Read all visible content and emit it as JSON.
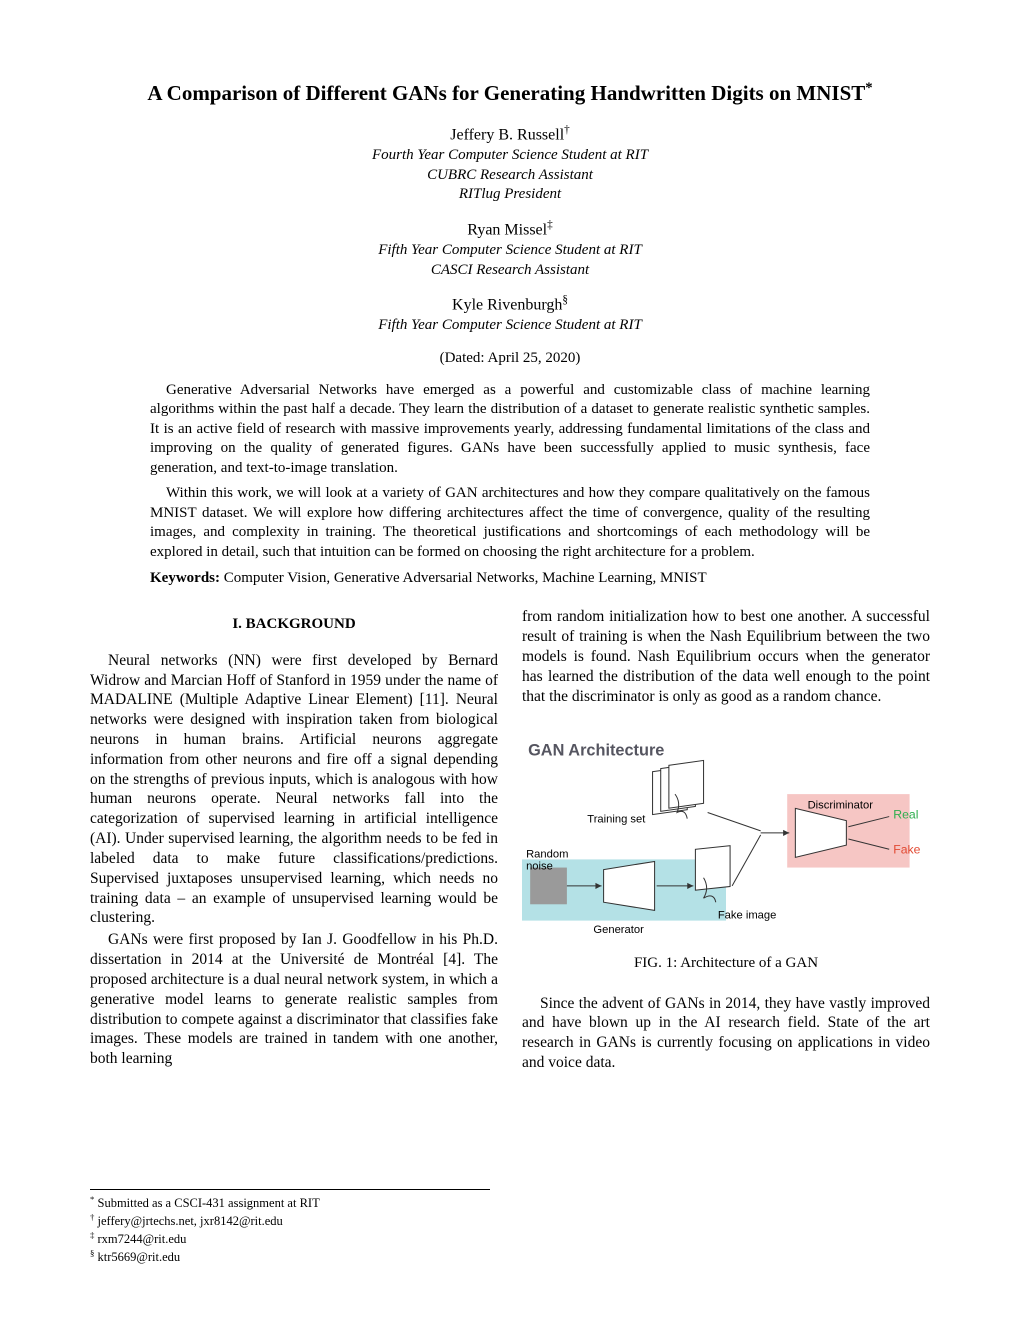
{
  "title": "A Comparison of Different GANs for Generating Handwritten Digits on MNIST",
  "title_footnote_marker": "*",
  "authors": [
    {
      "name": "Jeffery B. Russell",
      "marker": "†",
      "affiliations": [
        "Fourth Year Computer Science Student at RIT",
        "CUBRC Research Assistant",
        "RITlug President"
      ]
    },
    {
      "name": "Ryan Missel",
      "marker": "‡",
      "affiliations": [
        "Fifth Year Computer Science Student at RIT",
        "CASCI Research Assistant"
      ]
    },
    {
      "name": "Kyle Rivenburgh",
      "marker": "§",
      "affiliations": [
        "Fifth Year Computer Science Student at RIT"
      ]
    }
  ],
  "dated": "(Dated: April 25, 2020)",
  "abstract": [
    "Generative Adversarial Networks have emerged as a powerful and customizable class of machine learning algorithms within the past half a decade. They learn the distribution of a dataset to generate realistic synthetic samples. It is an active field of research with massive improvements yearly, addressing fundamental limitations of the class and improving on the quality of generated figures. GANs have been successfully applied to music synthesis, face generation, and text-to-image translation.",
    "Within this work, we will look at a variety of GAN architectures and how they compare qualitatively on the famous MNIST dataset. We will explore how differing architectures affect the time of convergence, quality of the resulting images, and complexity in training. The theoretical justifications and shortcomings of each methodology will be explored in detail, such that intuition can be formed on choosing the right architecture for a problem."
  ],
  "keywords_label": "Keywords:",
  "keywords_text": " Computer Vision, Generative Adversarial Networks, Machine Learning, MNIST",
  "section_heading": "I.    BACKGROUND",
  "col1_paragraphs": [
    "Neural networks (NN) were first developed by Bernard Widrow and Marcian Hoff of Stanford in 1959 under the name of MADALINE (Multiple Adaptive Linear Element) [11]. Neural networks were designed with inspiration taken from biological neurons in human brains. Artificial neurons aggregate information from other neurons and fire off a signal depending on the strengths of previous inputs, which is analogous with how human neurons operate. Neural networks fall into the categorization of supervised learning in artificial intelligence (AI). Under supervised learning, the algorithm needs to be fed in labeled data to make future classifications/predictions. Supervised juxtaposes unsupervised learning, which needs no training data – an example of unsupervised learning would be clustering.",
    "GANs were first proposed by Ian J. Goodfellow in his Ph.D. dissertation in 2014 at the Université de Montréal [4]. The proposed architecture is a dual neural network system, in which a generative model learns to generate realistic samples from distribution to compete against a discriminator that classifies fake images. These models are trained in tandem with one another, both learning"
  ],
  "col2_paragraphs_top": [
    "from random initialization how to best one another. A successful result of training is when the Nash Equilibrium between the two models is found. Nash Equilibrium occurs when the generator has learned the distribution of the data well enough to the point that the discriminator is only as good as a random chance."
  ],
  "figure": {
    "title": "GAN Architecture",
    "labels": {
      "training_set": "Training set",
      "random_noise": "Random\nnoise",
      "generator": "Generator",
      "fake_image": "Fake image",
      "discriminator": "Discriminator",
      "real": "Real",
      "fake": "Fake"
    },
    "colors": {
      "gen_bg": "#b4e1e6",
      "disc_bg": "#f6c6c4",
      "noise_fill": "#9a9a9a",
      "real_color": "#2fae4e",
      "fake_color": "#e24a33",
      "stroke": "#333333",
      "title_color": "#555560",
      "paper_fill": "#ffffff"
    },
    "title_fontsize": 16,
    "label_fontsize": 11,
    "caption": "FIG. 1: Architecture of a GAN"
  },
  "col2_paragraphs_bottom": [
    "Since the advent of GANs in 2014, they have vastly improved and have blown up in the AI research field. State of the art research in GANs is currently focusing on applications in video and voice data."
  ],
  "footnotes": [
    {
      "marker": "*",
      "text": " Submitted as a CSCI-431 assignment at RIT"
    },
    {
      "marker": "†",
      "text": " jeffery@jrtechs.net, jxr8142@rit.edu"
    },
    {
      "marker": "‡",
      "text": " rxm7244@rit.edu"
    },
    {
      "marker": "§",
      "text": " ktr5669@rit.edu"
    }
  ]
}
